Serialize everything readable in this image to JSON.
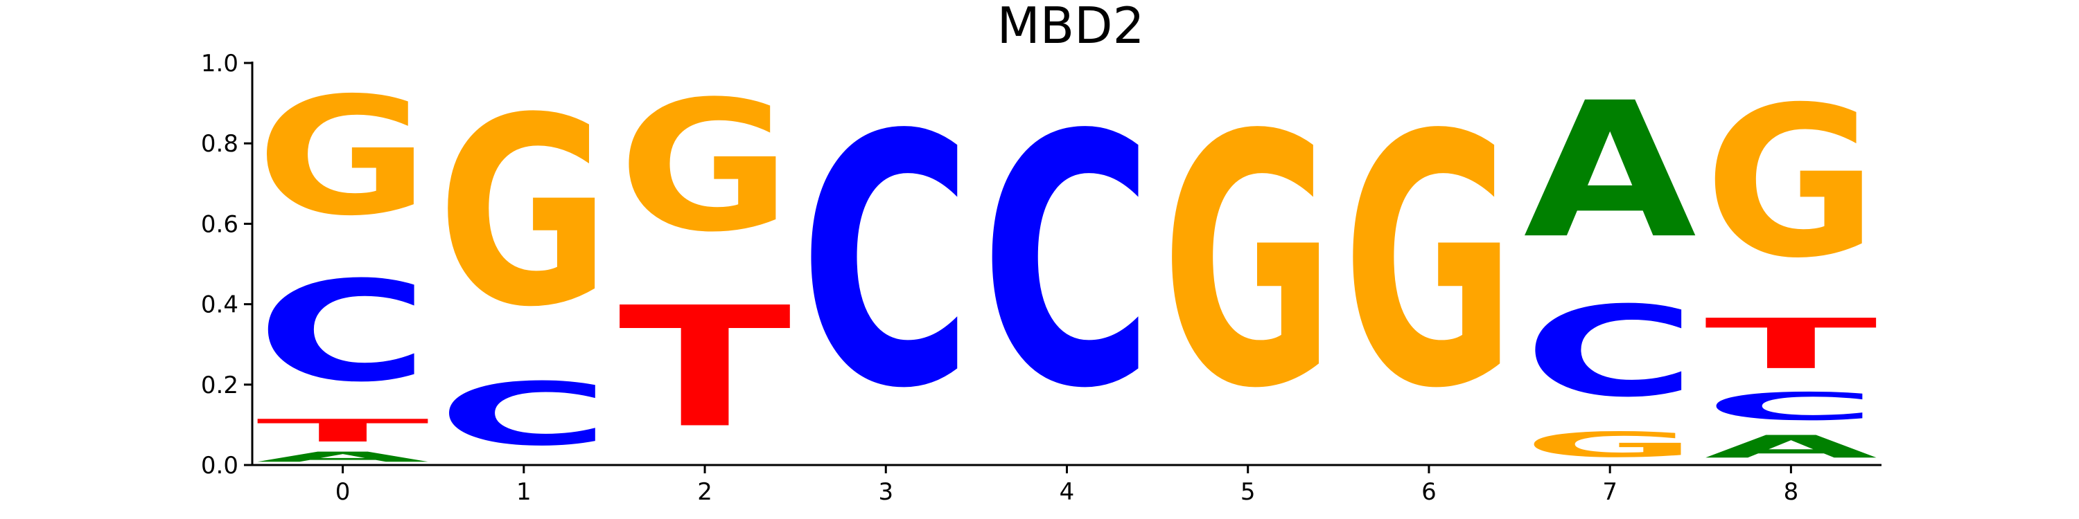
{
  "chart_data": {
    "type": "sequence_logo",
    "title": "MBD2",
    "x": [
      "0",
      "1",
      "2",
      "3",
      "4",
      "5",
      "6",
      "7",
      "8"
    ],
    "ylim": [
      0,
      1
    ],
    "yticks": [
      "0.0",
      "0.2",
      "0.4",
      "0.6",
      "0.8",
      "1.0"
    ],
    "colors": {
      "A": "#008000",
      "C": "#0000ff",
      "G": "#ffa500",
      "T": "#ff0000"
    },
    "positions": [
      {
        "position": "0",
        "letters": [
          {
            "base": "A",
            "value": 0.04
          },
          {
            "base": "T",
            "value": 0.09
          },
          {
            "base": "C",
            "value": 0.4
          },
          {
            "base": "G",
            "value": 0.47
          }
        ]
      },
      {
        "position": "1",
        "letters": [
          {
            "base": "C",
            "value": 0.25
          },
          {
            "base": "G",
            "value": 0.75
          }
        ]
      },
      {
        "position": "2",
        "letters": [
          {
            "base": "T",
            "value": 0.48
          },
          {
            "base": "G",
            "value": 0.52
          }
        ]
      },
      {
        "position": "3",
        "letters": [
          {
            "base": "C",
            "value": 1.0
          }
        ]
      },
      {
        "position": "4",
        "letters": [
          {
            "base": "C",
            "value": 1.0
          }
        ]
      },
      {
        "position": "5",
        "letters": [
          {
            "base": "G",
            "value": 1.0
          }
        ]
      },
      {
        "position": "6",
        "letters": [
          {
            "base": "G",
            "value": 1.0
          }
        ]
      },
      {
        "position": "7",
        "letters": [
          {
            "base": "G",
            "value": 0.1
          },
          {
            "base": "C",
            "value": 0.36
          },
          {
            "base": "A",
            "value": 0.54
          }
        ]
      },
      {
        "position": "8",
        "letters": [
          {
            "base": "A",
            "value": 0.09
          },
          {
            "base": "C",
            "value": 0.11
          },
          {
            "base": "T",
            "value": 0.2
          },
          {
            "base": "G",
            "value": 0.6
          }
        ]
      }
    ]
  }
}
